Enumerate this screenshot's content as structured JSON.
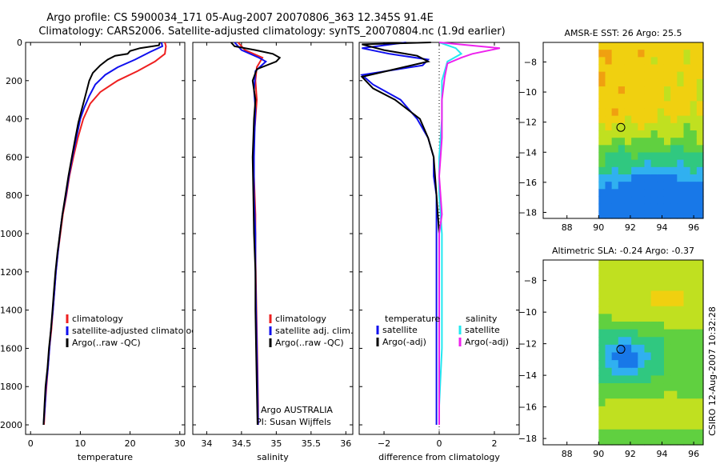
{
  "header": {
    "title_line1": "Argo profile: CS 5900034_171 05-Aug-2007 20070806_363 12.345S 91.4E",
    "title_line2": "Climatology: CARS2006. Satellite-adjusted climatology: synTS_20070804.nc (1.9d earlier)"
  },
  "side_label": "CSIRO 12-Aug-2007 10:32:28",
  "colors": {
    "red": "#ee2020",
    "blue": "#1010ee",
    "black": "#000000",
    "cyan": "#22e8f0",
    "magenta": "#ee22ee"
  },
  "chart_data": [
    {
      "type": "line",
      "id": "temperature",
      "xlabel": "temperature",
      "xlim": [
        -1,
        31
      ],
      "ylim": [
        0,
        2050
      ],
      "y_reversed": true,
      "xticks": [
        0,
        10,
        20,
        30
      ],
      "yticks": [
        0,
        200,
        400,
        600,
        800,
        1000,
        1200,
        1400,
        1600,
        1800,
        2000
      ],
      "series": [
        {
          "name": "climatology",
          "color": "#ee2020",
          "points": [
            [
              27.0,
              0
            ],
            [
              27.2,
              20
            ],
            [
              27.0,
              60
            ],
            [
              25.0,
              100
            ],
            [
              21.5,
              150
            ],
            [
              17.5,
              200
            ],
            [
              14.0,
              260
            ],
            [
              12.0,
              320
            ],
            [
              10.6,
              400
            ],
            [
              9.5,
              500
            ],
            [
              8.6,
              600
            ],
            [
              7.8,
              700
            ],
            [
              7.2,
              800
            ],
            [
              6.5,
              900
            ],
            [
              6.0,
              1000
            ],
            [
              5.5,
              1100
            ],
            [
              5.1,
              1200
            ],
            [
              4.8,
              1300
            ],
            [
              4.5,
              1400
            ],
            [
              4.2,
              1500
            ],
            [
              3.8,
              1600
            ],
            [
              3.5,
              1700
            ],
            [
              3.2,
              1800
            ],
            [
              2.9,
              1900
            ],
            [
              2.7,
              2000
            ]
          ]
        },
        {
          "name": "satellite-adjusted climatology",
          "color": "#1010ee",
          "points": [
            [
              26.3,
              0
            ],
            [
              26.5,
              20
            ],
            [
              24.0,
              50
            ],
            [
              21.0,
              90
            ],
            [
              17.5,
              130
            ],
            [
              15.0,
              170
            ],
            [
              13.0,
              220
            ],
            [
              11.8,
              280
            ],
            [
              10.8,
              340
            ],
            [
              10.0,
              400
            ],
            [
              9.2,
              500
            ],
            [
              8.4,
              600
            ],
            [
              7.7,
              700
            ],
            [
              7.1,
              800
            ],
            [
              6.4,
              900
            ],
            [
              5.9,
              1000
            ],
            [
              5.5,
              1100
            ],
            [
              5.1,
              1200
            ],
            [
              4.8,
              1300
            ],
            [
              4.5,
              1400
            ],
            [
              4.1,
              1500
            ],
            [
              3.8,
              1600
            ],
            [
              3.5,
              1700
            ],
            [
              3.1,
              1800
            ],
            [
              2.9,
              1900
            ],
            [
              2.6,
              2000
            ]
          ]
        },
        {
          "name": "Argo(..raw -QC)",
          "color": "#000000",
          "points": [
            [
              26.0,
              0
            ],
            [
              25.8,
              15
            ],
            [
              22.0,
              30
            ],
            [
              20.0,
              45
            ],
            [
              19.5,
              60
            ],
            [
              17.0,
              70
            ],
            [
              15.5,
              90
            ],
            [
              14.0,
              120
            ],
            [
              12.5,
              160
            ],
            [
              11.8,
              200
            ],
            [
              10.8,
              300
            ],
            [
              10.2,
              360
            ],
            [
              9.6,
              420
            ],
            [
              9.0,
              500
            ],
            [
              8.3,
              600
            ],
            [
              7.6,
              700
            ],
            [
              7.0,
              800
            ],
            [
              6.4,
              900
            ],
            [
              5.9,
              1000
            ],
            [
              5.4,
              1100
            ],
            [
              5.0,
              1200
            ],
            [
              4.7,
              1300
            ],
            [
              4.4,
              1400
            ],
            [
              4.1,
              1500
            ],
            [
              3.7,
              1600
            ],
            [
              3.4,
              1700
            ],
            [
              3.0,
              1800
            ],
            [
              2.8,
              1900
            ],
            [
              2.6,
              2000
            ]
          ]
        }
      ],
      "legend": [
        {
          "label": "climatology",
          "color": "#ee2020"
        },
        {
          "label": "satellite-adjusted climatology",
          "color": "#1010ee"
        },
        {
          "label": "Argo(..raw -QC)",
          "color": "#000000"
        }
      ]
    },
    {
      "type": "line",
      "id": "salinity",
      "xlabel": "salinity",
      "xlim": [
        33.8,
        36.1
      ],
      "ylim": [
        0,
        2050
      ],
      "y_reversed": true,
      "xticks": [
        34,
        34.5,
        35,
        35.5,
        36
      ],
      "series": [
        {
          "name": "climatology",
          "color": "#ee2020",
          "points": [
            [
              34.45,
              0
            ],
            [
              34.55,
              40
            ],
            [
              34.8,
              80
            ],
            [
              34.72,
              130
            ],
            [
              34.7,
              200
            ],
            [
              34.72,
              300
            ],
            [
              34.7,
              400
            ],
            [
              34.68,
              500
            ],
            [
              34.68,
              700
            ],
            [
              34.7,
              900
            ],
            [
              34.7,
              1100
            ],
            [
              34.71,
              1300
            ],
            [
              34.72,
              1500
            ],
            [
              34.73,
              1700
            ],
            [
              34.74,
              1900
            ],
            [
              34.74,
              2000
            ]
          ]
        },
        {
          "name": "satellite adj. clim.",
          "color": "#1010ee",
          "points": [
            [
              34.4,
              0
            ],
            [
              34.5,
              40
            ],
            [
              34.75,
              80
            ],
            [
              34.85,
              100
            ],
            [
              34.7,
              150
            ],
            [
              34.68,
              250
            ],
            [
              34.7,
              350
            ],
            [
              34.69,
              450
            ],
            [
              34.68,
              600
            ],
            [
              34.68,
              800
            ],
            [
              34.7,
              1000
            ],
            [
              34.7,
              1200
            ],
            [
              34.71,
              1400
            ],
            [
              34.72,
              1600
            ],
            [
              34.73,
              1800
            ],
            [
              34.74,
              2000
            ]
          ]
        },
        {
          "name": "Argo(..raw -QC)",
          "color": "#000000",
          "points": [
            [
              34.35,
              0
            ],
            [
              34.4,
              20
            ],
            [
              34.7,
              40
            ],
            [
              34.95,
              60
            ],
            [
              35.05,
              80
            ],
            [
              35.0,
              100
            ],
            [
              34.72,
              140
            ],
            [
              34.66,
              200
            ],
            [
              34.7,
              300
            ],
            [
              34.68,
              400
            ],
            [
              34.67,
              500
            ],
            [
              34.66,
              600
            ],
            [
              34.67,
              800
            ],
            [
              34.68,
              1000
            ],
            [
              34.7,
              1200
            ],
            [
              34.7,
              1400
            ],
            [
              34.71,
              1600
            ],
            [
              34.72,
              1800
            ],
            [
              34.73,
              2000
            ]
          ]
        }
      ],
      "legend": [
        {
          "label": "climatology",
          "color": "#ee2020"
        },
        {
          "label": "satellite adj. clim.",
          "color": "#1010ee"
        },
        {
          "label": "Argo(..raw -QC)",
          "color": "#000000"
        }
      ],
      "annotation_line1": "Argo AUSTRALIA",
      "annotation_line2": "PI: Susan Wijffels"
    },
    {
      "type": "line",
      "id": "difference",
      "xlabel": "difference from climatology",
      "xlim": [
        -2.9,
        2.9
      ],
      "ylim": [
        0,
        2050
      ],
      "y_reversed": true,
      "xticks": [
        -2,
        0,
        2
      ],
      "series": [
        {
          "name": "temperature satellite",
          "color": "#1010ee",
          "points": [
            [
              -1.2,
              0
            ],
            [
              -2.8,
              30
            ],
            [
              -1.8,
              60
            ],
            [
              -0.4,
              90
            ],
            [
              -0.6,
              120
            ],
            [
              -2.8,
              170
            ],
            [
              -2.4,
              220
            ],
            [
              -1.4,
              300
            ],
            [
              -0.8,
              400
            ],
            [
              -0.4,
              500
            ],
            [
              -0.2,
              600
            ],
            [
              -0.2,
              700
            ],
            [
              -0.1,
              800
            ],
            [
              -0.1,
              1000
            ],
            [
              -0.1,
              1200
            ],
            [
              -0.1,
              1500
            ],
            [
              -0.1,
              1800
            ],
            [
              -0.1,
              2000
            ]
          ]
        },
        {
          "name": "temperature Argo(-adj)",
          "color": "#000000",
          "points": [
            [
              -0.3,
              0
            ],
            [
              -2.8,
              10
            ],
            [
              -2.0,
              40
            ],
            [
              -0.8,
              70
            ],
            [
              -0.4,
              100
            ],
            [
              -2.8,
              180
            ],
            [
              -2.4,
              240
            ],
            [
              -1.6,
              300
            ],
            [
              -0.7,
              400
            ],
            [
              -0.4,
              500
            ],
            [
              -0.2,
              600
            ],
            [
              -0.1,
              800
            ],
            [
              0.0,
              1000
            ],
            [
              0.0,
              1200
            ],
            [
              0.0,
              1500
            ],
            [
              0.0,
              1800
            ],
            [
              0.0,
              2000
            ]
          ]
        },
        {
          "name": "salinity satellite",
          "color": "#22e8f0",
          "points": [
            [
              0.0,
              0
            ],
            [
              0.6,
              30
            ],
            [
              0.8,
              60
            ],
            [
              0.3,
              100
            ],
            [
              0.1,
              200
            ],
            [
              0.1,
              400
            ],
            [
              0.0,
              600
            ],
            [
              0.0,
              800
            ],
            [
              0.1,
              1000
            ],
            [
              0.1,
              1300
            ],
            [
              0.1,
              1600
            ],
            [
              0.0,
              1900
            ],
            [
              0.0,
              2000
            ]
          ]
        },
        {
          "name": "salinity Argo(-adj)",
          "color": "#ee22ee",
          "points": [
            [
              0.0,
              0
            ],
            [
              2.2,
              30
            ],
            [
              1.2,
              60
            ],
            [
              0.8,
              80
            ],
            [
              0.3,
              110
            ],
            [
              0.2,
              180
            ],
            [
              0.1,
              300
            ],
            [
              0.1,
              500
            ],
            [
              0.0,
              700
            ],
            [
              0.1,
              900
            ],
            [
              0.0,
              1000
            ],
            [
              0.0,
              1200
            ],
            [
              0.0,
              1500
            ],
            [
              0.0,
              1800
            ],
            [
              0.0,
              2000
            ]
          ]
        }
      ],
      "legend_temperature_heading": "temperature",
      "legend_salinity_heading": "salinity",
      "legend": [
        {
          "label": "satellite",
          "color": "#1010ee"
        },
        {
          "label": "Argo(-adj)",
          "color": "#000000"
        },
        {
          "label": "satellite",
          "color": "#22e8f0"
        },
        {
          "label": "Argo(-adj)",
          "color": "#ee22ee"
        }
      ]
    },
    {
      "type": "heatmap",
      "id": "sst_map",
      "title": "AMSR-E SST: 26 Argo: 25.5",
      "xlim": [
        86.5,
        96.6
      ],
      "ylim": [
        -18.4,
        -6.7
      ],
      "xticks": [
        88,
        90,
        92,
        94,
        96
      ],
      "yticks": [
        -8,
        -10,
        -12,
        -14,
        -16,
        -18
      ],
      "data_xmin": 90,
      "marker": [
        91.4,
        -12.35
      ]
    },
    {
      "type": "heatmap",
      "id": "sla_map",
      "title": "Altimetric SLA: -0.24 Argo: -0.37",
      "xlim": [
        86.5,
        96.6
      ],
      "ylim": [
        -18.4,
        -6.7
      ],
      "xticks": [
        88,
        90,
        92,
        94,
        96
      ],
      "yticks": [
        -8,
        -10,
        -12,
        -14,
        -16,
        -18
      ],
      "data_xmin": 90,
      "marker": [
        91.4,
        -12.35
      ]
    }
  ]
}
